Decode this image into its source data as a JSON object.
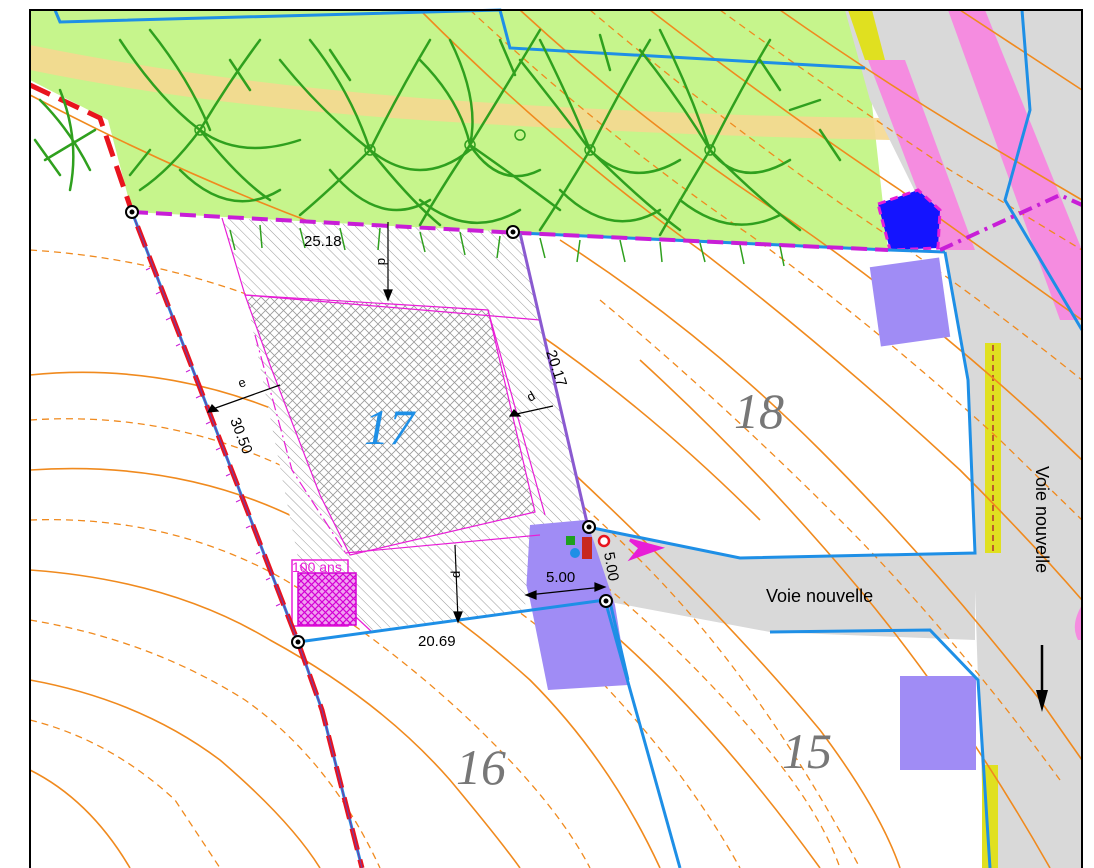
{
  "lots": {
    "lot_17": "17",
    "lot_18": "18",
    "lot_16": "16",
    "lot_15": "15"
  },
  "dimensions": {
    "top_edge": "25.18",
    "right_edge": "20.17",
    "left_edge": "30.50",
    "bottom_edge": "20.69",
    "access_width": "5.00",
    "access_depth": "5.00"
  },
  "setback_labels": {
    "d_top": "d",
    "d_right": "d",
    "d_bottom": "d",
    "e_left": "e"
  },
  "flood_label": "100 ans",
  "roads": {
    "road_horizontal": "Voie nouvelle",
    "road_vertical": "Voie nouvelle"
  },
  "colors": {
    "green_zone": "#c6f58c",
    "parcel_line": "#1e8fe6",
    "contour": "#f08a1e",
    "road_fill": "#d9d9d9",
    "purple_block": "#a08cf5",
    "magenta": "#e81ed7",
    "red_dash": "#e8141e",
    "pink_strip": "#f58ce0",
    "yellow_strip": "#e0e020",
    "lot_label": "#777777",
    "lot_17_label": "#1e8fe6"
  }
}
